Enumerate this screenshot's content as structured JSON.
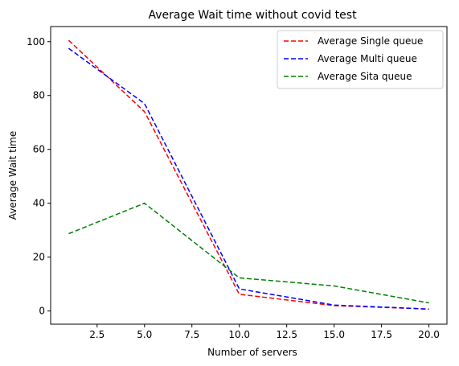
{
  "chart_data": {
    "type": "line",
    "title": "Average Wait time without covid test",
    "xlabel": "Number of servers",
    "ylabel": "Average Wait time",
    "x": [
      1,
      5,
      10,
      15,
      20
    ],
    "xlim": [
      0.05,
      20.95
    ],
    "ylim": [
      -4.9,
      105.6
    ],
    "xticks": [
      2.5,
      5.0,
      7.5,
      10.0,
      12.5,
      15.0,
      17.5,
      20.0
    ],
    "xtick_labels": [
      "2.5",
      "5.0",
      "7.5",
      "10.0",
      "12.5",
      "15.0",
      "17.5",
      "20.0"
    ],
    "yticks": [
      0,
      20,
      40,
      60,
      80,
      100
    ],
    "ytick_labels": [
      "0",
      "20",
      "40",
      "60",
      "80",
      "100"
    ],
    "grid": false,
    "legend_position": "top-right",
    "series": [
      {
        "name": "Average Single queue",
        "color": "#ff0000",
        "values": [
          100.5,
          74.0,
          6.2,
          2.0,
          0.7
        ]
      },
      {
        "name": "Average Multi queue",
        "color": "#0000ff",
        "values": [
          97.5,
          77.0,
          8.2,
          2.2,
          0.7
        ]
      },
      {
        "name": "Average Sita queue",
        "color": "#008000",
        "values": [
          28.7,
          40.0,
          12.3,
          9.3,
          3.0
        ]
      }
    ]
  }
}
